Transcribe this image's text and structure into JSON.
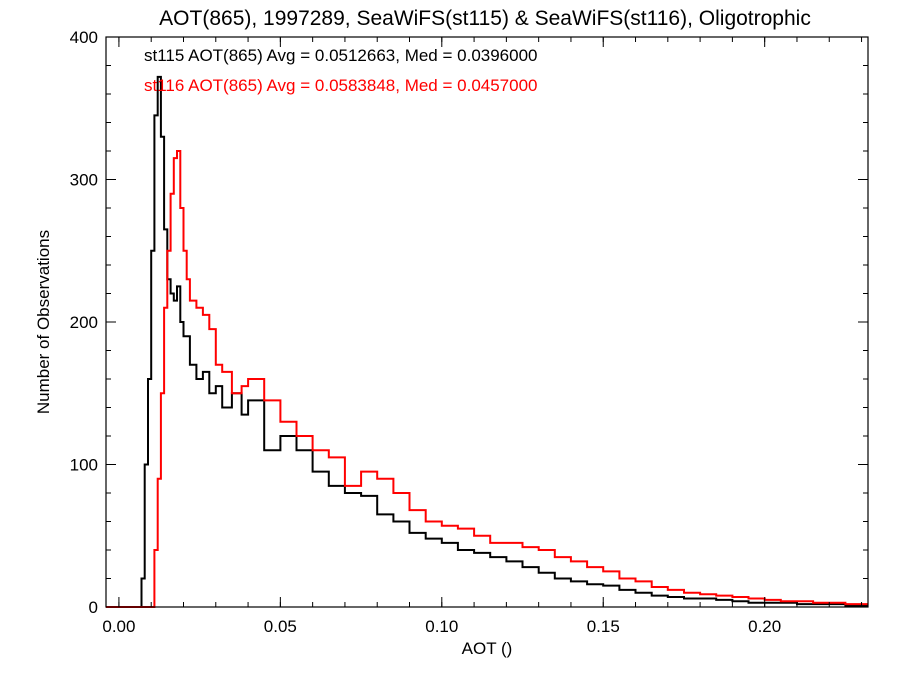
{
  "chart_data": {
    "type": "line",
    "title": "AOT(865), 1997289, SeaWiFS(st115) & SeaWiFS(st116), Oligotrophic",
    "xlabel": "AOT ()",
    "ylabel": "Number of Observations",
    "xlim": [
      -0.004,
      0.232
    ],
    "ylim": [
      0,
      400
    ],
    "x_ticks": [
      "0.00",
      "0.05",
      "0.10",
      "0.15",
      "0.20"
    ],
    "y_ticks": [
      "0",
      "100",
      "200",
      "300",
      "400"
    ],
    "grid": false,
    "legend_position": "top-left",
    "series": [
      {
        "name": "st115",
        "label": "st115 AOT(865) Avg = 0.0512663, Med = 0.0396000",
        "color": "#000000",
        "x": [
          -0.004,
          0.006,
          0.007,
          0.008,
          0.009,
          0.01,
          0.011,
          0.012,
          0.013,
          0.014,
          0.015,
          0.016,
          0.017,
          0.018,
          0.019,
          0.02,
          0.022,
          0.024,
          0.026,
          0.028,
          0.03,
          0.032,
          0.035,
          0.038,
          0.04,
          0.045,
          0.05,
          0.055,
          0.06,
          0.065,
          0.07,
          0.075,
          0.08,
          0.085,
          0.09,
          0.095,
          0.1,
          0.105,
          0.11,
          0.115,
          0.12,
          0.125,
          0.13,
          0.135,
          0.14,
          0.145,
          0.15,
          0.155,
          0.16,
          0.165,
          0.17,
          0.175,
          0.18,
          0.185,
          0.19,
          0.195,
          0.2,
          0.205,
          0.21,
          0.215,
          0.22,
          0.225,
          0.231
        ],
        "y": [
          0,
          0,
          20,
          100,
          160,
          250,
          345,
          372,
          330,
          265,
          230,
          220,
          215,
          225,
          200,
          190,
          170,
          160,
          165,
          150,
          155,
          140,
          150,
          135,
          145,
          110,
          120,
          110,
          95,
          85,
          80,
          78,
          65,
          60,
          52,
          48,
          45,
          40,
          38,
          35,
          32,
          28,
          24,
          20,
          18,
          16,
          15,
          12,
          10,
          8,
          7,
          6,
          6,
          5,
          4,
          3,
          3,
          3,
          2,
          2,
          2,
          1,
          1
        ]
      },
      {
        "name": "st116",
        "label": "st116 AOT(865) Avg = 0.0583848, Med = 0.0457000",
        "color": "#ff0000",
        "x": [
          -0.004,
          0.01,
          0.011,
          0.012,
          0.013,
          0.014,
          0.015,
          0.016,
          0.017,
          0.018,
          0.019,
          0.02,
          0.021,
          0.022,
          0.024,
          0.026,
          0.028,
          0.03,
          0.032,
          0.035,
          0.038,
          0.04,
          0.045,
          0.05,
          0.055,
          0.06,
          0.065,
          0.07,
          0.075,
          0.08,
          0.085,
          0.09,
          0.095,
          0.1,
          0.105,
          0.11,
          0.115,
          0.12,
          0.125,
          0.13,
          0.135,
          0.14,
          0.145,
          0.15,
          0.155,
          0.16,
          0.165,
          0.17,
          0.175,
          0.18,
          0.185,
          0.19,
          0.195,
          0.2,
          0.205,
          0.21,
          0.215,
          0.22,
          0.225,
          0.231
        ],
        "y": [
          0,
          0,
          40,
          90,
          150,
          210,
          250,
          290,
          315,
          320,
          280,
          250,
          230,
          215,
          210,
          205,
          195,
          170,
          165,
          150,
          155,
          160,
          145,
          130,
          120,
          110,
          105,
          85,
          95,
          90,
          80,
          68,
          60,
          57,
          55,
          50,
          45,
          45,
          42,
          40,
          35,
          32,
          28,
          25,
          20,
          18,
          14,
          12,
          10,
          9,
          8,
          7,
          6,
          5,
          4,
          4,
          3,
          3,
          2,
          2
        ]
      }
    ]
  }
}
